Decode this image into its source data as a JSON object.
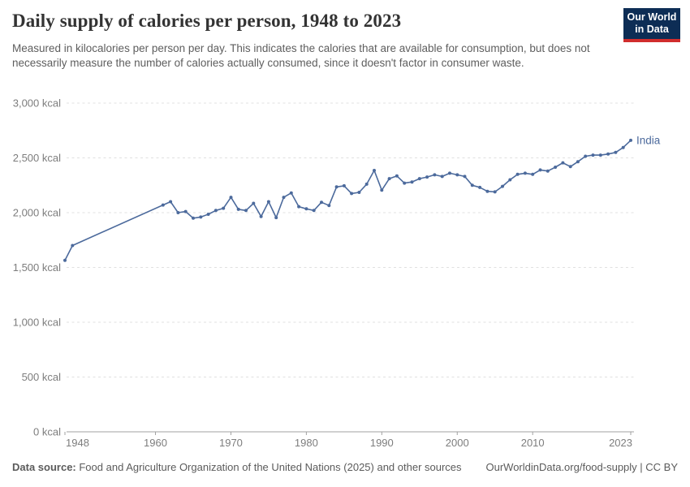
{
  "header": {
    "title": "Daily supply of calories per person, 1948 to 2023",
    "subtitle": "Measured in kilocalories per person per day. This indicates the calories that are available for consumption, but does not necessarily measure the number of calories actually consumed, since it doesn't factor in consumer waste.",
    "logo": {
      "line1": "Our World",
      "line2": "in Data"
    }
  },
  "chart_data": {
    "type": "line",
    "title": "Daily supply of calories per person, 1948 to 2023",
    "entity": "India",
    "unit": "kcal",
    "xlabel": "",
    "ylabel": "",
    "xlim": [
      1948,
      2023
    ],
    "ylim": [
      0,
      3000
    ],
    "grid": "dashed-horizontal",
    "line_color": "#4C6A9C",
    "x": [
      1948,
      1949,
      1961,
      1962,
      1963,
      1964,
      1965,
      1966,
      1967,
      1968,
      1969,
      1970,
      1971,
      1972,
      1973,
      1974,
      1975,
      1976,
      1977,
      1978,
      1979,
      1980,
      1981,
      1982,
      1983,
      1984,
      1985,
      1986,
      1987,
      1988,
      1989,
      1990,
      1991,
      1992,
      1993,
      1994,
      1995,
      1996,
      1997,
      1998,
      1999,
      2000,
      2001,
      2002,
      2003,
      2004,
      2005,
      2006,
      2007,
      2008,
      2009,
      2010,
      2011,
      2012,
      2013,
      2014,
      2015,
      2016,
      2017,
      2018,
      2019,
      2020,
      2021,
      2022,
      2023
    ],
    "y": [
      1565,
      1700,
      2070,
      2100,
      2000,
      2010,
      1950,
      1960,
      1985,
      2020,
      2040,
      2140,
      2030,
      2020,
      2085,
      1965,
      2100,
      1955,
      2140,
      2180,
      2055,
      2035,
      2020,
      2095,
      2065,
      2235,
      2245,
      2175,
      2185,
      2260,
      2385,
      2205,
      2310,
      2335,
      2270,
      2280,
      2310,
      2325,
      2345,
      2330,
      2360,
      2345,
      2330,
      2250,
      2230,
      2195,
      2190,
      2240,
      2300,
      2350,
      2360,
      2350,
      2390,
      2380,
      2415,
      2455,
      2420,
      2465,
      2515,
      2525,
      2525,
      2535,
      2550,
      2595,
      2660
    ],
    "y_ticks": [
      {
        "value": 0,
        "label": "0 kcal"
      },
      {
        "value": 500,
        "label": "500 kcal"
      },
      {
        "value": 1000,
        "label": "1,000 kcal"
      },
      {
        "value": 1500,
        "label": "1,500 kcal"
      },
      {
        "value": 2000,
        "label": "2,000 kcal"
      },
      {
        "value": 2500,
        "label": "2,500 kcal"
      },
      {
        "value": 3000,
        "label": "3,000 kcal"
      }
    ],
    "x_ticks": [
      {
        "value": 1948,
        "label": "1948"
      },
      {
        "value": 1960,
        "label": "1960"
      },
      {
        "value": 1970,
        "label": "1970"
      },
      {
        "value": 1980,
        "label": "1980"
      },
      {
        "value": 1990,
        "label": "1990"
      },
      {
        "value": 2000,
        "label": "2000"
      },
      {
        "value": 2010,
        "label": "2010"
      },
      {
        "value": 2023,
        "label": "2023"
      }
    ],
    "legend_position": "end-of-line-label"
  },
  "footer": {
    "source_label": "Data source:",
    "source_text": " Food and Agriculture Organization of the United Nations (2025) and other sources",
    "link_text": "OurWorldinData.org/food-supply | CC BY"
  },
  "colors": {
    "accent_line": "#4C6A9C",
    "logo_bg": "#0d2d55",
    "logo_red": "#d12d2d",
    "gridline": "#e0e0e0",
    "axis": "#a1a1a1",
    "tick_text": "#7d7d7d"
  }
}
